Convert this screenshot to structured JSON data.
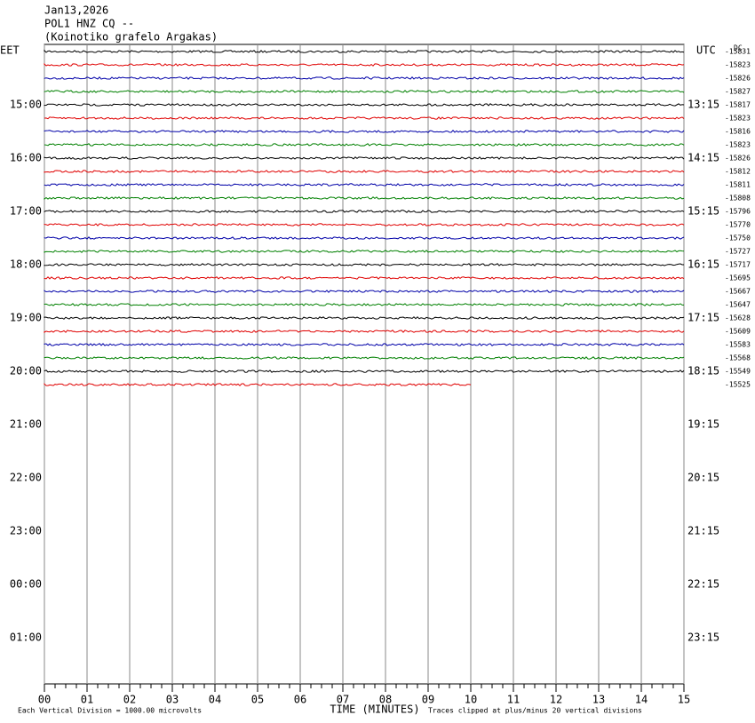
{
  "chart_data": {
    "type": "helicorder",
    "title_lines": [
      "Jan13,2026",
      "POL1 HNZ CQ --",
      "(Koinotiko grafelo Argakas)"
    ],
    "left_zone": "EET",
    "right_zone": "UTC",
    "dc_header": "DC",
    "left_hours": [
      "15:00",
      "16:00",
      "17:00",
      "18:00",
      "19:00",
      "20:00",
      "21:00",
      "22:00",
      "23:00",
      "00:00",
      "01:00"
    ],
    "right_hours": [
      "13:15",
      "14:15",
      "15:15",
      "16:15",
      "17:15",
      "18:15",
      "19:15",
      "20:15",
      "21:15",
      "22:15",
      "23:15"
    ],
    "colors": [
      "#000000",
      "#e00000",
      "#0000a8",
      "#008000"
    ],
    "traces": [
      {
        "dc": -15831,
        "end": 15
      },
      {
        "dc": -15823,
        "end": 15
      },
      {
        "dc": -15826,
        "end": 15
      },
      {
        "dc": -15827,
        "end": 15
      },
      {
        "dc": -15817,
        "end": 15
      },
      {
        "dc": -15823,
        "end": 15
      },
      {
        "dc": -15816,
        "end": 15
      },
      {
        "dc": -15823,
        "end": 15
      },
      {
        "dc": -15826,
        "end": 15
      },
      {
        "dc": -15812,
        "end": 15
      },
      {
        "dc": -15811,
        "end": 15
      },
      {
        "dc": -15808,
        "end": 15
      },
      {
        "dc": -15796,
        "end": 15
      },
      {
        "dc": -15770,
        "end": 15
      },
      {
        "dc": -15750,
        "end": 15
      },
      {
        "dc": -15727,
        "end": 15
      },
      {
        "dc": -15717,
        "end": 15
      },
      {
        "dc": -15695,
        "end": 15
      },
      {
        "dc": -15667,
        "end": 15
      },
      {
        "dc": -15647,
        "end": 15
      },
      {
        "dc": -15628,
        "end": 15
      },
      {
        "dc": -15609,
        "end": 15
      },
      {
        "dc": -15583,
        "end": 15
      },
      {
        "dc": -15568,
        "end": 15
      },
      {
        "dc": -15549,
        "end": 15
      },
      {
        "dc": -15525,
        "end": 10
      }
    ],
    "xlim": [
      0,
      15
    ],
    "xticks": [
      {
        "value": 0,
        "label": "00"
      },
      {
        "value": 1,
        "label": "01"
      },
      {
        "value": 2,
        "label": "02"
      },
      {
        "value": 3,
        "label": "03"
      },
      {
        "value": 4,
        "label": "04"
      },
      {
        "value": 5,
        "label": "05"
      },
      {
        "value": 6,
        "label": "06"
      },
      {
        "value": 7,
        "label": "07"
      },
      {
        "value": 8,
        "label": "08"
      },
      {
        "value": 9,
        "label": "09"
      },
      {
        "value": 10,
        "label": "10"
      },
      {
        "value": 11,
        "label": "11"
      },
      {
        "value": 12,
        "label": "12"
      },
      {
        "value": 13,
        "label": "13"
      },
      {
        "value": 14,
        "label": "14"
      },
      {
        "value": 15,
        "label": "15"
      }
    ],
    "xlabel": "TIME (MINUTES)",
    "footer_left": "Each Vertical Division = 1000.00 microvolts",
    "footer_right": "Traces clipped at plus/minus 20 vertical divisions"
  }
}
